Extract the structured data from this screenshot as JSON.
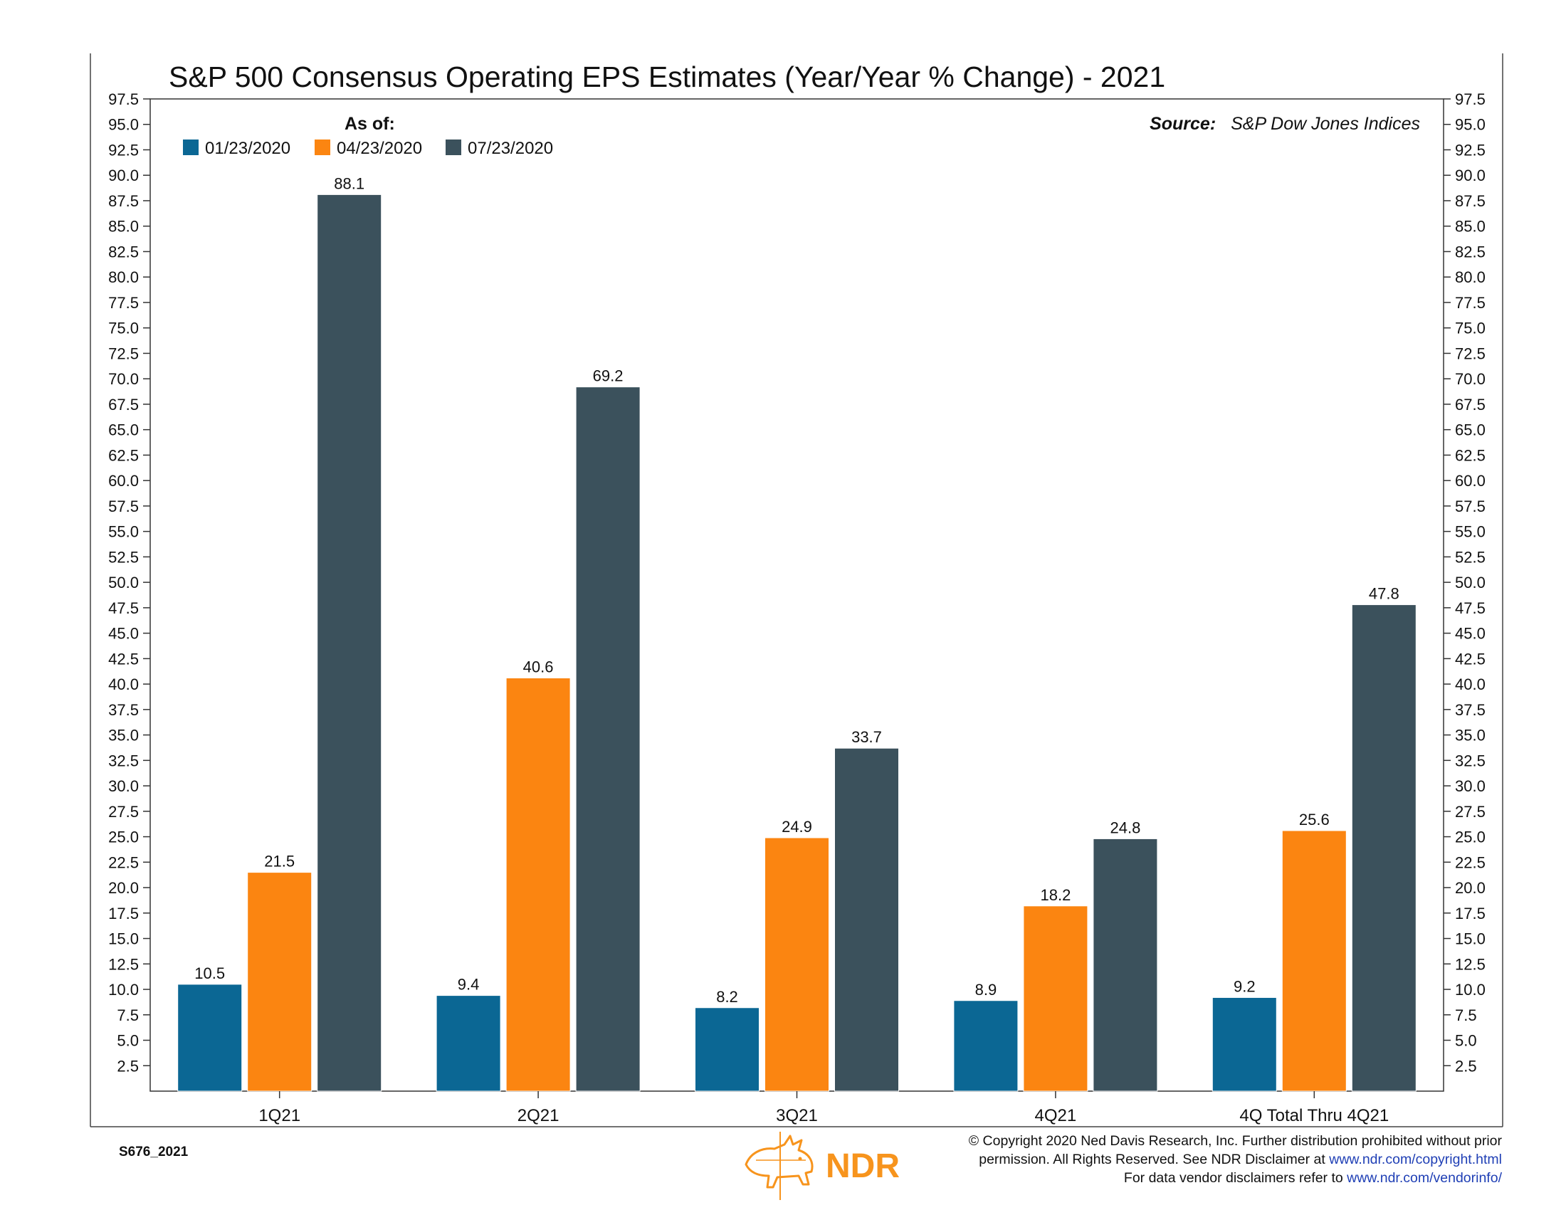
{
  "chart_data": {
    "type": "bar",
    "title": "S&P 500 Consensus Operating EPS Estimates (Year/Year % Change) - 2021",
    "xlabel": "",
    "ylabel": "",
    "ylim": [
      0,
      97.5
    ],
    "ytick_step": 2.5,
    "yticks_left": [
      "2.5",
      "5.0",
      "7.5",
      "10.0",
      "12.5",
      "15.0",
      "17.5",
      "20.0",
      "22.5",
      "25.0",
      "27.5",
      "30.0",
      "32.5",
      "35.0",
      "37.5",
      "40.0",
      "42.5",
      "45.0",
      "47.5",
      "50.0",
      "52.5",
      "55.0",
      "57.5",
      "60.0",
      "62.5",
      "65.0",
      "67.5",
      "70.0",
      "72.5",
      "75.0",
      "77.5",
      "80.0",
      "82.5",
      "85.0",
      "87.5",
      "90.0",
      "92.5",
      "95.0",
      "97.5"
    ],
    "yticks_right": [
      "2.5",
      "5.0",
      "7.5",
      "10.0",
      "12.5",
      "15.0",
      "17.5",
      "20.0",
      "22.5",
      "25.0",
      "27.5",
      "30.0",
      "32.5",
      "35.0",
      "37.5",
      "40.0",
      "42.5",
      "45.0",
      "47.5",
      "50.0",
      "52.5",
      "55.0",
      "57.5",
      "60.0",
      "62.5",
      "65.0",
      "67.5",
      "70.0",
      "72.5",
      "75.0",
      "77.5",
      "80.0",
      "82.5",
      "85.0",
      "87.5",
      "90.0",
      "92.5",
      "95.0",
      "97.5"
    ],
    "grid": false,
    "categories": [
      "1Q21",
      "2Q21",
      "3Q21",
      "4Q21",
      "4Q Total Thru 4Q21"
    ],
    "legend_title": "As of:",
    "legend_position": "top-left",
    "series": [
      {
        "name": "01/23/2020",
        "color": "#0b6794",
        "values": [
          10.5,
          9.4,
          8.2,
          8.9,
          9.2
        ],
        "labels": [
          "10.5",
          "9.4",
          "8.2",
          "8.9",
          "9.2"
        ]
      },
      {
        "name": "04/23/2020",
        "color": "#fb8511",
        "values": [
          21.5,
          40.6,
          24.9,
          18.2,
          25.6
        ],
        "labels": [
          "21.5",
          "40.6",
          "24.9",
          "18.2",
          "25.6"
        ]
      },
      {
        "name": "07/23/2020",
        "color": "#3b515c",
        "values": [
          88.1,
          69.2,
          33.7,
          24.8,
          47.8
        ],
        "labels": [
          "88.1",
          "69.2",
          "33.7",
          "24.8",
          "47.8"
        ]
      }
    ],
    "source_label": "Source:",
    "source_value": "S&P Dow Jones Indices"
  },
  "footer": {
    "chart_id": "S676_2021",
    "logo_text": "NDR",
    "logo_color": "#f7941d",
    "copyright_line1": "© Copyright 2020 Ned Davis Research, Inc. Further distribution prohibited without prior",
    "copyright_line2_prefix": "permission. All Rights Reserved. See NDR Disclaimer at ",
    "copyright_line2_link": "www.ndr.com/copyright.html",
    "copyright_line3_prefix": "For data vendor disclaimers refer to ",
    "copyright_line3_link": "www.ndr.com/vendorinfo/",
    "link_color": "#1f3fb5"
  }
}
